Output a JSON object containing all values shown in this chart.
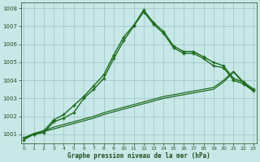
{
  "xlabel": "Graphe pression niveau de la mer (hPa)",
  "x": [
    0,
    1,
    2,
    3,
    4,
    5,
    6,
    7,
    8,
    9,
    10,
    11,
    12,
    13,
    14,
    15,
    16,
    17,
    18,
    19,
    20,
    21,
    22,
    23
  ],
  "y_main1": [
    1000.8,
    1001.0,
    1001.1,
    1001.7,
    1001.9,
    1002.2,
    1003.0,
    1003.5,
    1004.1,
    1005.2,
    1006.2,
    1007.0,
    1007.8,
    1007.1,
    1006.6,
    1005.8,
    1005.5,
    1005.5,
    1005.2,
    1004.8,
    1004.7,
    1004.0,
    1003.8,
    1003.4
  ],
  "y_main2": [
    1000.7,
    1001.0,
    1001.2,
    1001.8,
    1002.1,
    1002.6,
    1003.1,
    1003.7,
    1004.3,
    1005.4,
    1006.4,
    1007.05,
    1007.9,
    1007.2,
    1006.7,
    1005.9,
    1005.6,
    1005.6,
    1005.3,
    1005.0,
    1004.8,
    1004.1,
    1003.9,
    1003.5
  ],
  "y_lin1": [
    1000.8,
    1001.0,
    1001.15,
    1001.3,
    1001.45,
    1001.6,
    1001.75,
    1001.9,
    1002.1,
    1002.25,
    1002.4,
    1002.55,
    1002.7,
    1002.85,
    1003.0,
    1003.1,
    1003.2,
    1003.3,
    1003.4,
    1003.5,
    1003.9,
    1004.45,
    1003.85,
    1003.4
  ],
  "y_lin2": [
    1000.8,
    1001.05,
    1001.2,
    1001.4,
    1001.55,
    1001.7,
    1001.85,
    1002.0,
    1002.2,
    1002.35,
    1002.5,
    1002.65,
    1002.8,
    1002.95,
    1003.1,
    1003.2,
    1003.3,
    1003.4,
    1003.5,
    1003.6,
    1004.0,
    1004.5,
    1003.9,
    1003.5
  ],
  "line_color": "#1e6b1e",
  "bg_color": "#c8e8e8",
  "grid_color": "#a0c8c8",
  "text_color": "#1e4e1e",
  "ylim_min": 1000.5,
  "ylim_max": 1008.3,
  "yticks": [
    1001,
    1002,
    1003,
    1004,
    1005,
    1006,
    1007,
    1008
  ],
  "xticks": [
    0,
    1,
    2,
    3,
    4,
    5,
    6,
    7,
    8,
    9,
    10,
    11,
    12,
    13,
    14,
    15,
    16,
    17,
    18,
    19,
    20,
    21,
    22,
    23
  ]
}
